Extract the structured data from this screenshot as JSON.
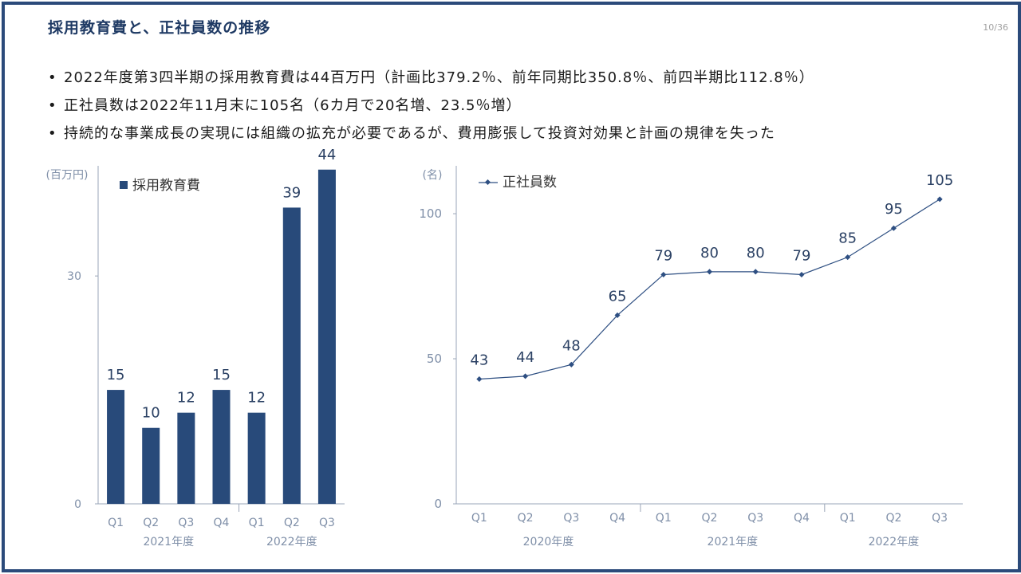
{
  "header": {
    "title": "採用教育費と、正社員数の推移",
    "page": "10/36"
  },
  "bullets": [
    "2022年度第3四半期の採用教育費は44百万円（計画比379.2％、前年同期比350.8％、前四半期比112.8％）",
    "正社員数は2022年11月末に105名（6カ月で20名増、23.5％増）",
    "持続的な事業成長の実現には組織の拡充が必要であるが、費用膨張して投資対効果と計画の規律を失った"
  ],
  "colors": {
    "frame": "#2b4a7a",
    "bar": "#284a7a",
    "line": "#2e4f82",
    "title": "#1f3a64",
    "axis": "#7f8fa8"
  },
  "chart_data": [
    {
      "type": "bar",
      "unit_label": "(百万円)",
      "legend": "採用教育費",
      "legend_position": "top-left",
      "categories": [
        "Q1",
        "Q2",
        "Q3",
        "Q4",
        "Q1",
        "Q2",
        "Q3"
      ],
      "groups": [
        {
          "label": "2021年度",
          "categories": [
            "Q1",
            "Q2",
            "Q3",
            "Q4"
          ]
        },
        {
          "label": "2022年度",
          "categories": [
            "Q1",
            "Q2",
            "Q3"
          ]
        }
      ],
      "values": [
        15,
        10,
        12,
        15,
        12,
        39,
        44
      ],
      "yticks": [
        0,
        30
      ],
      "ylim": [
        0,
        44.5
      ],
      "grid": false
    },
    {
      "type": "line",
      "unit_label": "(名)",
      "legend": "正社員数",
      "legend_position": "top-left",
      "categories": [
        "Q1",
        "Q2",
        "Q3",
        "Q4",
        "Q1",
        "Q2",
        "Q3",
        "Q4",
        "Q1",
        "Q2",
        "Q3"
      ],
      "groups": [
        {
          "label": "2020年度",
          "categories": [
            "Q1",
            "Q2",
            "Q3",
            "Q4"
          ]
        },
        {
          "label": "2021年度",
          "categories": [
            "Q1",
            "Q2",
            "Q3",
            "Q4"
          ]
        },
        {
          "label": "2022年度",
          "categories": [
            "Q1",
            "Q2",
            "Q3"
          ]
        }
      ],
      "values": [
        43,
        44,
        48,
        65,
        79,
        80,
        80,
        79,
        85,
        95,
        105
      ],
      "yticks": [
        0,
        50,
        100
      ],
      "ylim": [
        0,
        116.5
      ],
      "grid": false
    }
  ]
}
